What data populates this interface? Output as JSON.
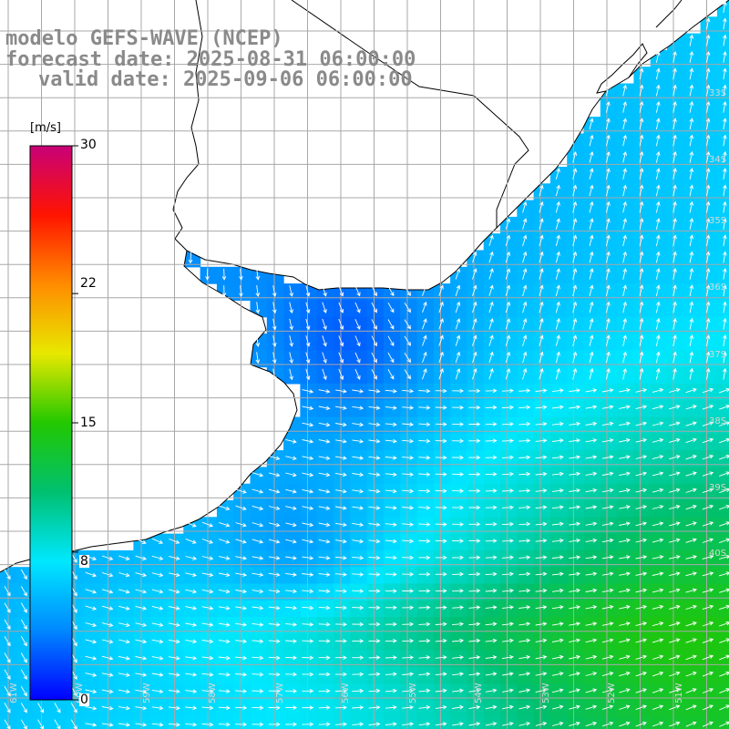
{
  "title": {
    "model": "modelo GEFS-WAVE (NCEP)",
    "forecast_date": "forecast date: 2025-08-31 06:00:00",
    "valid_date": "valid date: 2025-09-06 06:00:00"
  },
  "colorbar": {
    "unit": "[m/s]",
    "tick_labels": [
      "30",
      "22",
      "15",
      "8",
      "0"
    ],
    "tick_values": [
      30,
      22,
      15,
      8,
      0
    ],
    "range": [
      0,
      30
    ],
    "gradient": [
      "#0000ff",
      "#0088ff",
      "#00e8ff",
      "#00c070",
      "#22c800",
      "#e8e800",
      "#ff8c00",
      "#ff1400",
      "#c80078"
    ]
  },
  "map": {
    "variable": "wind speed and direction",
    "land_color": "#ffffff",
    "coastline_color": "#000000",
    "grid_color": "#a8a8a8",
    "arrow_color": "#ffffff",
    "lat_labels": [
      "33S",
      "34S",
      "35S",
      "36S",
      "37S",
      "38S",
      "39S",
      "40S"
    ],
    "lon_labels": [
      "61W",
      "60W",
      "59W",
      "58W",
      "57W",
      "56W",
      "55W",
      "54W",
      "53W",
      "52W",
      "51W"
    ]
  }
}
